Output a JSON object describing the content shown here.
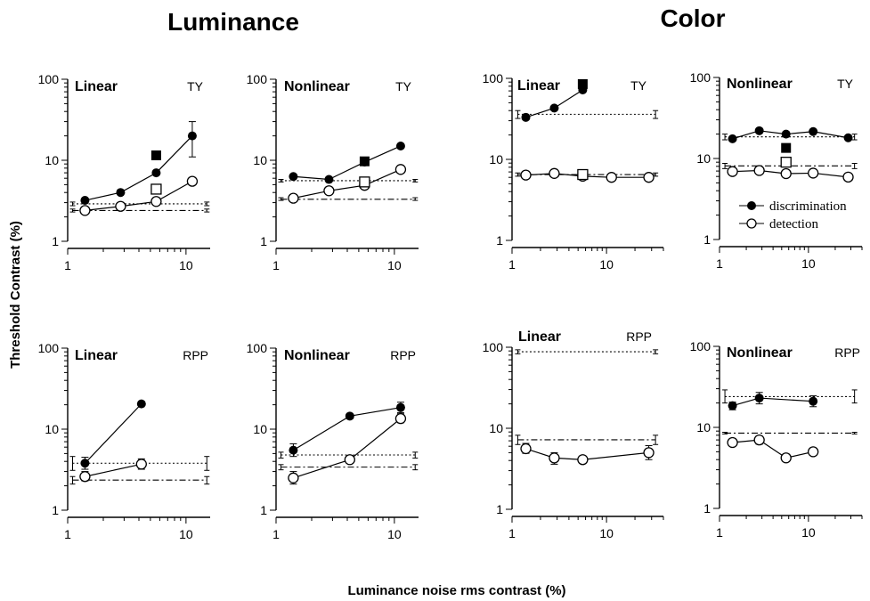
{
  "figure": {
    "group_titles": [
      "Luminance",
      "Color"
    ],
    "ylabel": "Threshold Contrast (%)",
    "xlabel": "Luminance noise rms contrast (%)",
    "legend": [
      {
        "label": "discrimination",
        "marker": "filled-circle"
      },
      {
        "label": "detection",
        "marker": "open-circle"
      }
    ]
  },
  "chart_data": [
    {
      "type": "line",
      "label": "Linear",
      "subject": "TY",
      "group": "Luminance",
      "xscale": "log",
      "yscale": "log",
      "xlim": [
        1,
        16
      ],
      "ylim": [
        1,
        100
      ],
      "x_ticks": [
        "1",
        "10"
      ],
      "y_ticks": [
        "1",
        "10",
        "100"
      ],
      "series": [
        {
          "role": "discrimination",
          "marker": "filled-circle",
          "x": [
            1.4,
            2.8,
            5.6,
            11.3
          ],
          "y": [
            3.2,
            4.0,
            7.0,
            20.0
          ],
          "err": [
            null,
            null,
            null,
            [
              11,
              30
            ]
          ]
        },
        {
          "role": "detection",
          "marker": "open-circle",
          "x": [
            1.4,
            2.8,
            5.6,
            11.3
          ],
          "y": [
            2.4,
            2.7,
            3.1,
            5.5
          ],
          "err": [
            null,
            null,
            null,
            null
          ]
        },
        {
          "role": "discrimination",
          "marker": "filled-square",
          "x": [
            5.6
          ],
          "y": [
            11.5
          ]
        },
        {
          "role": "detection",
          "marker": "open-square",
          "x": [
            5.6
          ],
          "y": [
            4.4
          ]
        }
      ],
      "reference_lines": [
        {
          "role": "discrimination",
          "style": "dotted",
          "y": 2.9,
          "x_range": [
            1.1,
            15
          ],
          "err": [
            2.75,
            3.05
          ]
        },
        {
          "role": "detection",
          "style": "dash-dot",
          "y": 2.4,
          "x_range": [
            1.1,
            15
          ],
          "err": [
            2.3,
            2.5
          ]
        }
      ]
    },
    {
      "type": "line",
      "label": "Nonlinear",
      "subject": "TY",
      "group": "Luminance",
      "xscale": "log",
      "yscale": "log",
      "xlim": [
        1,
        16
      ],
      "ylim": [
        1,
        100
      ],
      "x_ticks": [
        "1",
        "10"
      ],
      "y_ticks": [
        "1",
        "10",
        "100"
      ],
      "series": [
        {
          "role": "discrimination",
          "marker": "filled-circle",
          "x": [
            1.4,
            2.8,
            5.6,
            11.3
          ],
          "y": [
            6.3,
            5.8,
            9.5,
            15.0
          ],
          "err": [
            null,
            null,
            null,
            null
          ]
        },
        {
          "role": "detection",
          "marker": "open-circle",
          "x": [
            1.4,
            2.8,
            5.6,
            11.3
          ],
          "y": [
            3.4,
            4.2,
            4.9,
            7.7
          ],
          "err": [
            null,
            null,
            null,
            [
              7,
              8.5
            ]
          ]
        },
        {
          "role": "discrimination",
          "marker": "filled-square",
          "x": [
            5.6
          ],
          "y": [
            9.7
          ]
        },
        {
          "role": "detection",
          "marker": "open-square",
          "x": [
            5.6
          ],
          "y": [
            5.4
          ]
        }
      ],
      "reference_lines": [
        {
          "role": "discrimination",
          "style": "dotted",
          "y": 5.6,
          "x_range": [
            1.1,
            15
          ],
          "err": [
            5.4,
            5.8
          ]
        },
        {
          "role": "detection",
          "style": "dash-dot",
          "y": 3.3,
          "x_range": [
            1.1,
            15
          ],
          "err": [
            3.2,
            3.45
          ]
        }
      ]
    },
    {
      "type": "line",
      "label": "Linear",
      "subject": "TY",
      "group": "Color",
      "xscale": "log",
      "yscale": "log",
      "xlim": [
        1,
        40
      ],
      "ylim": [
        1,
        100
      ],
      "x_ticks": [
        "1",
        "10"
      ],
      "y_ticks": [
        "1",
        "10",
        "100"
      ],
      "series": [
        {
          "role": "discrimination",
          "marker": "filled-circle",
          "x": [
            1.4,
            2.8,
            5.6
          ],
          "y": [
            33,
            43,
            72
          ],
          "err": [
            null,
            null,
            null
          ]
        },
        {
          "role": "detection",
          "marker": "open-circle",
          "x": [
            1.4,
            2.8,
            5.6,
            11.3,
            28
          ],
          "y": [
            6.4,
            6.7,
            6.2,
            6.0,
            6.0
          ],
          "err": [
            null,
            null,
            null,
            null,
            null
          ]
        },
        {
          "role": "discrimination",
          "marker": "filled-square",
          "x": [
            5.6
          ],
          "y": [
            85
          ]
        },
        {
          "role": "detection",
          "marker": "open-square",
          "x": [
            5.6
          ],
          "y": [
            6.5
          ]
        }
      ],
      "reference_lines": [
        {
          "role": "discrimination",
          "style": "dotted",
          "y": 36,
          "x_range": [
            1.15,
            33
          ],
          "err": [
            32,
            40
          ]
        },
        {
          "role": "detection",
          "style": "dash-dot",
          "y": 6.5,
          "x_range": [
            1.15,
            33
          ],
          "err": [
            6.2,
            6.8
          ]
        }
      ]
    },
    {
      "type": "line",
      "label": "Nonlinear",
      "subject": "TY",
      "group": "Color",
      "xscale": "log",
      "yscale": "log",
      "xlim": [
        1,
        40
      ],
      "ylim": [
        1,
        100
      ],
      "x_ticks": [
        "1",
        "10"
      ],
      "y_ticks": [
        "1",
        "10",
        "100"
      ],
      "series": [
        {
          "role": "discrimination",
          "marker": "filled-circle",
          "x": [
            1.4,
            2.8,
            5.6,
            11.3,
            28
          ],
          "y": [
            17.5,
            22,
            20,
            21.5,
            18
          ],
          "err": [
            null,
            null,
            null,
            null,
            null
          ]
        },
        {
          "role": "detection",
          "marker": "open-circle",
          "x": [
            1.4,
            2.8,
            5.6,
            11.3,
            28
          ],
          "y": [
            6.9,
            7.1,
            6.5,
            6.6,
            5.9
          ],
          "err": [
            null,
            null,
            null,
            null,
            null
          ]
        },
        {
          "role": "discrimination",
          "marker": "filled-square",
          "x": [
            5.6
          ],
          "y": [
            13.5
          ]
        },
        {
          "role": "detection",
          "marker": "open-square",
          "x": [
            5.6
          ],
          "y": [
            9.0
          ]
        }
      ],
      "reference_lines": [
        {
          "role": "discrimination",
          "style": "dotted",
          "y": 18.5,
          "x_range": [
            1.15,
            33
          ],
          "err": [
            17,
            20
          ]
        },
        {
          "role": "detection",
          "style": "dash-dot",
          "y": 8.1,
          "x_range": [
            1.15,
            33
          ],
          "err": [
            7.5,
            8.7
          ]
        }
      ]
    },
    {
      "type": "line",
      "label": "Linear",
      "subject": "RPP",
      "group": "Luminance",
      "xscale": "log",
      "yscale": "log",
      "xlim": [
        1,
        16
      ],
      "ylim": [
        1,
        100
      ],
      "x_ticks": [
        "1",
        "10"
      ],
      "y_ticks": [
        "1",
        "10",
        "100"
      ],
      "series": [
        {
          "role": "discrimination",
          "marker": "filled-circle",
          "x": [
            1.4,
            4.2
          ],
          "y": [
            3.8,
            20.5
          ],
          "err": [
            [
              3.2,
              4.5
            ],
            null
          ]
        },
        {
          "role": "detection",
          "marker": "open-circle",
          "x": [
            1.4,
            4.2
          ],
          "y": [
            2.6,
            3.7
          ],
          "err": [
            [
              2.3,
              3.0
            ],
            [
              3.2,
              4.3
            ]
          ]
        }
      ],
      "reference_lines": [
        {
          "role": "discrimination",
          "style": "dotted",
          "y": 3.8,
          "x_range": [
            1.1,
            15
          ],
          "err": [
            3.1,
            4.6
          ]
        },
        {
          "role": "detection",
          "style": "dash-dot",
          "y": 2.35,
          "x_range": [
            1.1,
            15
          ],
          "err": [
            2.1,
            2.6
          ]
        }
      ]
    },
    {
      "type": "line",
      "label": "Nonlinear",
      "subject": "RPP",
      "group": "Luminance",
      "xscale": "log",
      "yscale": "log",
      "xlim": [
        1,
        16
      ],
      "ylim": [
        1,
        100
      ],
      "x_ticks": [
        "1",
        "10"
      ],
      "y_ticks": [
        "1",
        "10",
        "100"
      ],
      "series": [
        {
          "role": "discrimination",
          "marker": "filled-circle",
          "x": [
            1.4,
            4.2,
            11.3
          ],
          "y": [
            5.5,
            14.5,
            18.5
          ],
          "err": [
            [
              4.6,
              6.6
            ],
            [
              13.5,
              15.5
            ],
            [
              16,
              21.5
            ]
          ]
        },
        {
          "role": "detection",
          "marker": "open-circle",
          "x": [
            1.4,
            4.2,
            11.3
          ],
          "y": [
            2.5,
            4.2,
            13.5
          ],
          "err": [
            [
              2.1,
              3.0
            ],
            [
              3.8,
              4.6
            ],
            [
              12,
              15.5
            ]
          ]
        }
      ],
      "reference_lines": [
        {
          "role": "discrimination",
          "style": "dotted",
          "y": 4.8,
          "x_range": [
            1.1,
            15
          ],
          "err": [
            4.4,
            5.2
          ]
        },
        {
          "role": "detection",
          "style": "dash-dot",
          "y": 3.4,
          "x_range": [
            1.1,
            15
          ],
          "err": [
            3.15,
            3.65
          ]
        }
      ]
    },
    {
      "type": "line",
      "label": "Linear",
      "subject": "RPP",
      "group": "Color",
      "xscale": "log",
      "yscale": "log",
      "xlim": [
        1,
        40
      ],
      "ylim": [
        1,
        100
      ],
      "x_ticks": [
        "1",
        "10"
      ],
      "y_ticks": [
        "1",
        "10",
        "100"
      ],
      "series": [
        {
          "role": "detection",
          "marker": "open-circle",
          "x": [
            1.4,
            2.8,
            5.6,
            28
          ],
          "y": [
            5.6,
            4.3,
            4.1,
            5.0
          ],
          "err": [
            [
              4.9,
              6.5
            ],
            [
              3.6,
              5.0
            ],
            [
              3.7,
              4.5
            ],
            [
              4.1,
              6.1
            ]
          ]
        }
      ],
      "reference_lines": [
        {
          "role": "discrimination",
          "style": "dotted",
          "y": 88,
          "x_range": [
            1.15,
            33
          ],
          "err": [
            83,
            93
          ]
        },
        {
          "role": "detection",
          "style": "dash-dot",
          "y": 7.2,
          "x_range": [
            1.15,
            33
          ],
          "err": [
            6.3,
            8.2
          ]
        }
      ]
    },
    {
      "type": "line",
      "label": "Nonlinear",
      "subject": "RPP",
      "group": "Color",
      "xscale": "log",
      "yscale": "log",
      "xlim": [
        1,
        40
      ],
      "ylim": [
        1,
        100
      ],
      "x_ticks": [
        "1",
        "10"
      ],
      "y_ticks": [
        "1",
        "10",
        "100"
      ],
      "series": [
        {
          "role": "discrimination",
          "marker": "filled-circle",
          "x": [
            1.4,
            2.8,
            11.3
          ],
          "y": [
            18.5,
            23,
            21
          ],
          "err": [
            [
              16.5,
              20.5
            ],
            [
              19.5,
              27
            ],
            [
              18,
              24.5
            ]
          ]
        },
        {
          "role": "detection",
          "marker": "open-circle",
          "x": [
            1.4,
            2.8,
            5.6,
            11.3
          ],
          "y": [
            6.5,
            7.0,
            4.2,
            5.0
          ],
          "err": [
            [
              6.0,
              7.0
            ],
            [
              6.2,
              7.8
            ],
            [
              3.8,
              4.6
            ],
            [
              4.6,
              5.4
            ]
          ]
        }
      ],
      "reference_lines": [
        {
          "role": "discrimination",
          "style": "dotted",
          "y": 24,
          "x_range": [
            1.15,
            33
          ],
          "err": [
            20,
            29
          ]
        },
        {
          "role": "detection",
          "style": "dash-dot",
          "y": 8.5,
          "x_range": [
            1.15,
            33
          ],
          "err": [
            8.3,
            8.7
          ]
        }
      ]
    }
  ]
}
